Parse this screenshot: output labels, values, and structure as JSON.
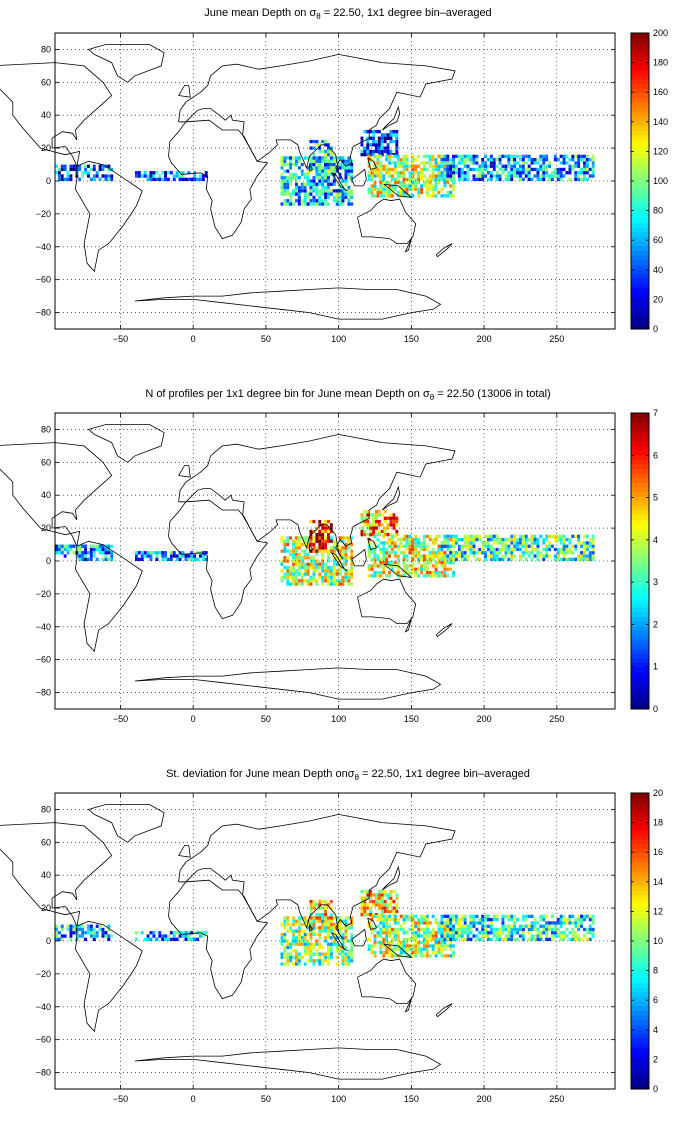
{
  "figure": {
    "panels": [
      {
        "title_pre": "June mean Depth on ",
        "title_sym": "σ",
        "title_sub": "θ",
        "title_post": " = 22.50, 1x1 degree bin–averaged"
      },
      {
        "title_pre": "N of profiles per 1x1 degree bin for June mean Depth on ",
        "title_sym": "σ",
        "title_sub": "θ",
        "title_post": " = 22.50 (13006 in total)"
      },
      {
        "title_pre": "St. deviation for June mean Depth on",
        "title_sym": "σ",
        "title_sub": "θ",
        "title_post": " = 22.50, 1x1 degree bin–averaged"
      }
    ]
  },
  "chart_data": [
    {
      "type": "heatmap",
      "title": "June mean Depth on σθ = 22.50, 1x1 degree bin-averaged",
      "x_ticks": [
        -50,
        0,
        50,
        100,
        150,
        200,
        250
      ],
      "y_ticks": [
        80,
        60,
        40,
        20,
        0,
        -20,
        -40,
        -60,
        -80
      ],
      "xlim": [
        -95,
        290
      ],
      "ylim": [
        -90,
        90
      ],
      "grid": true,
      "colormap": "jet",
      "colorbar": {
        "range": [
          0,
          200
        ],
        "ticks": [
          200,
          180,
          160,
          140,
          120,
          100,
          80,
          60,
          40,
          20,
          0
        ]
      },
      "regions": [
        {
          "lon": [
            -95,
            -55
          ],
          "lat": [
            0,
            10
          ],
          "value": 45
        },
        {
          "lon": [
            -40,
            10
          ],
          "lat": [
            0,
            5
          ],
          "value": 45
        },
        {
          "lon": [
            60,
            110
          ],
          "lat": [
            -15,
            15
          ],
          "value": 65
        },
        {
          "lon": [
            80,
            95
          ],
          "lat": [
            5,
            25
          ],
          "value": 75
        },
        {
          "lon": [
            115,
            140
          ],
          "lat": [
            15,
            30
          ],
          "value": 30
        },
        {
          "lon": [
            120,
            180
          ],
          "lat": [
            -10,
            15
          ],
          "value": 110
        },
        {
          "lon": [
            170,
            275
          ],
          "lat": [
            0,
            15
          ],
          "value": 60
        }
      ]
    },
    {
      "type": "heatmap",
      "title": "N of profiles per 1x1 degree bin for June mean Depth on σθ = 22.50 (13006 in total)",
      "x_ticks": [
        -50,
        0,
        50,
        100,
        150,
        200,
        250
      ],
      "y_ticks": [
        80,
        60,
        40,
        20,
        0,
        -20,
        -40,
        -60,
        -80
      ],
      "xlim": [
        -95,
        290
      ],
      "ylim": [
        -90,
        90
      ],
      "grid": true,
      "colormap": "jet",
      "total_profiles": 13006,
      "colorbar": {
        "range": [
          0,
          7
        ],
        "ticks": [
          7,
          6,
          5,
          4,
          3,
          2,
          1,
          0
        ]
      },
      "regions": [
        {
          "lon": [
            -95,
            -55
          ],
          "lat": [
            0,
            10
          ],
          "value": 2
        },
        {
          "lon": [
            -40,
            10
          ],
          "lat": [
            0,
            5
          ],
          "value": 2
        },
        {
          "lon": [
            60,
            110
          ],
          "lat": [
            -15,
            15
          ],
          "value": 4
        },
        {
          "lon": [
            80,
            95
          ],
          "lat": [
            5,
            25
          ],
          "value": 6
        },
        {
          "lon": [
            115,
            140
          ],
          "lat": [
            15,
            30
          ],
          "value": 5
        },
        {
          "lon": [
            120,
            180
          ],
          "lat": [
            -10,
            15
          ],
          "value": 4
        },
        {
          "lon": [
            170,
            275
          ],
          "lat": [
            0,
            15
          ],
          "value": 3
        }
      ]
    },
    {
      "type": "heatmap",
      "title": "St. deviation for June mean Depth on σθ = 22.50, 1x1 degree bin-averaged",
      "x_ticks": [
        -50,
        0,
        50,
        100,
        150,
        200,
        250
      ],
      "y_ticks": [
        80,
        60,
        40,
        20,
        0,
        -20,
        -40,
        -60,
        -80
      ],
      "xlim": [
        -95,
        290
      ],
      "ylim": [
        -90,
        90
      ],
      "grid": true,
      "colormap": "jet",
      "colorbar": {
        "range": [
          0,
          20
        ],
        "ticks": [
          20,
          18,
          16,
          14,
          12,
          10,
          8,
          6,
          4,
          2,
          0
        ]
      },
      "regions": [
        {
          "lon": [
            -95,
            -55
          ],
          "lat": [
            0,
            10
          ],
          "value": 6
        },
        {
          "lon": [
            -40,
            10
          ],
          "lat": [
            0,
            5
          ],
          "value": 6
        },
        {
          "lon": [
            60,
            110
          ],
          "lat": [
            -15,
            15
          ],
          "value": 10
        },
        {
          "lon": [
            80,
            95
          ],
          "lat": [
            5,
            25
          ],
          "value": 12
        },
        {
          "lon": [
            115,
            140
          ],
          "lat": [
            15,
            30
          ],
          "value": 13
        },
        {
          "lon": [
            120,
            180
          ],
          "lat": [
            -10,
            15
          ],
          "value": 11
        },
        {
          "lon": [
            170,
            275
          ],
          "lat": [
            0,
            15
          ],
          "value": 8
        }
      ]
    }
  ]
}
